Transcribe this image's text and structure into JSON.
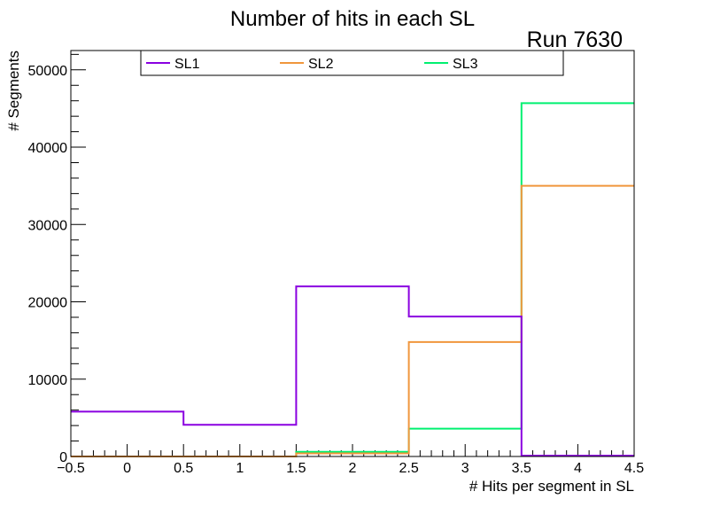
{
  "chart_data": {
    "type": "histogram-step",
    "title": "Number of hits in each SL",
    "run_label": "Run 7630",
    "xlabel": "# Hits per segment in SL",
    "ylabel": "# Segments",
    "xlim": [
      -0.5,
      4.5
    ],
    "ylim": [
      0,
      52500
    ],
    "x_ticks": [
      -0.5,
      0,
      0.5,
      1,
      1.5,
      2,
      2.5,
      3,
      3.5,
      4,
      4.5
    ],
    "x_tick_labels": [
      "−0.5",
      "0",
      "0.5",
      "1",
      "1.5",
      "2",
      "2.5",
      "3",
      "3.5",
      "4",
      "4.5"
    ],
    "y_ticks": [
      0,
      10000,
      20000,
      30000,
      40000,
      50000
    ],
    "y_tick_labels": [
      "0",
      "10000",
      "20000",
      "30000",
      "40000",
      "50000"
    ],
    "bin_edges": [
      -0.5,
      0.5,
      1.5,
      2.5,
      3.5,
      4.5
    ],
    "grid": false,
    "legend_position": "top",
    "series": [
      {
        "name": "SL1",
        "color": "#8a00e0",
        "values": [
          5800,
          4100,
          22000,
          18100,
          100
        ]
      },
      {
        "name": "SL2",
        "color": "#f0963c",
        "values": [
          0,
          0,
          400,
          14800,
          35000
        ]
      },
      {
        "name": "SL3",
        "color": "#00f070",
        "values": [
          0,
          0,
          600,
          3600,
          45700
        ]
      }
    ]
  }
}
